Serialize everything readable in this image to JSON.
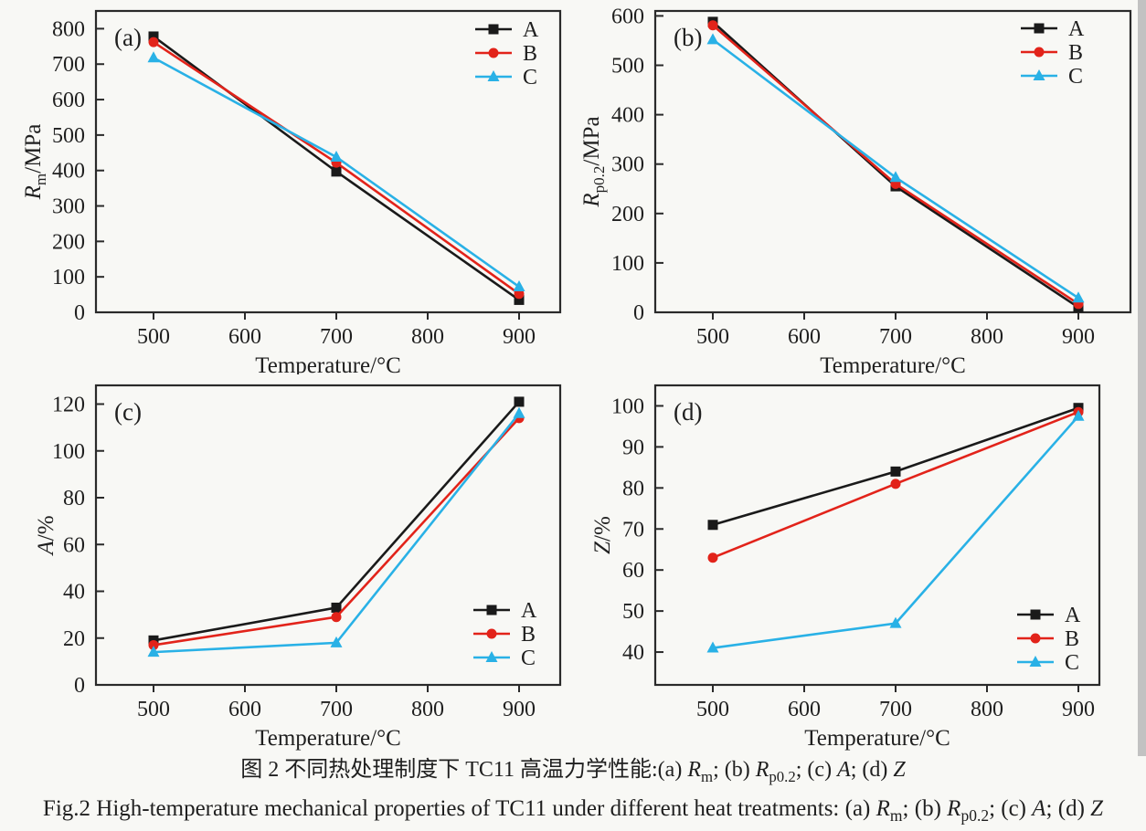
{
  "page": {
    "background": "#f8f8f5",
    "scan_strip_color": "#c2c2c2"
  },
  "colors": {
    "series_a": "#1a1a1a",
    "series_b": "#e2231a",
    "series_c": "#29b1e6",
    "text": "#1f1f1f",
    "axis": "#2a2a2a"
  },
  "caption": {
    "zh_segments": [
      {
        "t": "图 2 不同热处理制度下 TC11 高温力学性能:(a) "
      },
      {
        "t": "R",
        "i": true
      },
      {
        "t": "m",
        "sub": true
      },
      {
        "t": "; (b) "
      },
      {
        "t": "R",
        "i": true
      },
      {
        "t": "p0.2",
        "sub": true
      },
      {
        "t": "; (c) "
      },
      {
        "t": "A",
        "i": true
      },
      {
        "t": "; (d) "
      },
      {
        "t": "Z",
        "i": true
      }
    ],
    "en_segments": [
      {
        "t": "Fig.2  High-temperature mechanical properties of TC11 under different heat treatments: (a) "
      },
      {
        "t": "R",
        "i": true
      },
      {
        "t": "m",
        "sub": true
      },
      {
        "t": "; (b) "
      },
      {
        "t": "R",
        "i": true
      },
      {
        "t": "p0.2",
        "sub": true
      },
      {
        "t": "; (c) "
      },
      {
        "t": "A",
        "i": true
      },
      {
        "t": "; (d) "
      },
      {
        "t": "Z",
        "i": true
      }
    ]
  },
  "chart_data": [
    {
      "type": "line",
      "panel_label": "(a)",
      "xlabel": "Temperature/°C",
      "ylabel": "Rm/MPa",
      "ylabel_segments": [
        {
          "t": "R",
          "i": true
        },
        {
          "t": "m",
          "sub": true
        },
        {
          "t": "/MPa"
        }
      ],
      "x": [
        500,
        700,
        900
      ],
      "xticks": [
        500,
        600,
        700,
        800,
        900
      ],
      "xlim": [
        437,
        945
      ],
      "yticks": [
        0,
        100,
        200,
        300,
        400,
        500,
        600,
        700,
        800
      ],
      "ylim": [
        0,
        850
      ],
      "grid": false,
      "legend": {
        "position": "top-right",
        "entries": [
          "A",
          "B",
          "C"
        ]
      },
      "series": [
        {
          "name": "A",
          "color": "#1a1a1a",
          "marker": "square",
          "values": [
            778,
            397,
            35
          ]
        },
        {
          "name": "B",
          "color": "#e2231a",
          "marker": "circle",
          "values": [
            762,
            422,
            52
          ]
        },
        {
          "name": "C",
          "color": "#29b1e6",
          "marker": "triangle",
          "values": [
            718,
            438,
            72
          ]
        }
      ]
    },
    {
      "type": "line",
      "panel_label": "(b)",
      "xlabel": "Temperature/°C",
      "ylabel": "Rp0.2/MPa",
      "ylabel_segments": [
        {
          "t": "R",
          "i": true
        },
        {
          "t": "p0.2",
          "sub": true
        },
        {
          "t": "/MPa"
        }
      ],
      "x": [
        500,
        700,
        900
      ],
      "xticks": [
        500,
        600,
        700,
        800,
        900
      ],
      "xlim": [
        437,
        957
      ],
      "yticks": [
        0,
        100,
        200,
        300,
        400,
        500,
        600
      ],
      "ylim": [
        0,
        610
      ],
      "grid": false,
      "legend": {
        "position": "top-right",
        "entries": [
          "A",
          "B",
          "C"
        ]
      },
      "series": [
        {
          "name": "A",
          "color": "#1a1a1a",
          "marker": "square",
          "values": [
            588,
            255,
            10
          ]
        },
        {
          "name": "B",
          "color": "#e2231a",
          "marker": "circle",
          "values": [
            581,
            260,
            17
          ]
        },
        {
          "name": "C",
          "color": "#29b1e6",
          "marker": "triangle",
          "values": [
            552,
            273,
            29
          ]
        }
      ]
    },
    {
      "type": "line",
      "panel_label": "(c)",
      "xlabel": "Temperature/°C",
      "ylabel": "A/%",
      "ylabel_segments": [
        {
          "t": "A",
          "i": true
        },
        {
          "t": "/%"
        }
      ],
      "x": [
        500,
        700,
        900
      ],
      "xticks": [
        500,
        600,
        700,
        800,
        900
      ],
      "xlim": [
        437,
        945
      ],
      "yticks": [
        0,
        20,
        40,
        60,
        80,
        100,
        120
      ],
      "ylim": [
        0,
        128
      ],
      "grid": false,
      "legend": {
        "position": "bottom-right",
        "entries": [
          "A",
          "B",
          "C"
        ]
      },
      "series": [
        {
          "name": "A",
          "color": "#1a1a1a",
          "marker": "square",
          "values": [
            19,
            33,
            121
          ]
        },
        {
          "name": "B",
          "color": "#e2231a",
          "marker": "circle",
          "values": [
            17,
            29,
            114
          ]
        },
        {
          "name": "C",
          "color": "#29b1e6",
          "marker": "triangle",
          "values": [
            14,
            18,
            116
          ]
        }
      ]
    },
    {
      "type": "line",
      "panel_label": "(d)",
      "xlabel": "Temperature/°C",
      "ylabel": "Z/%",
      "ylabel_segments": [
        {
          "t": "Z",
          "i": true
        },
        {
          "t": "/%"
        }
      ],
      "x": [
        500,
        700,
        900
      ],
      "xticks": [
        500,
        600,
        700,
        800,
        900
      ],
      "xlim": [
        437,
        923
      ],
      "yticks": [
        40,
        50,
        60,
        70,
        80,
        90,
        100
      ],
      "ylim": [
        32,
        105
      ],
      "grid": false,
      "legend": {
        "position": "bottom-right",
        "entries": [
          "A",
          "B",
          "C"
        ]
      },
      "series": [
        {
          "name": "A",
          "color": "#1a1a1a",
          "marker": "square",
          "values": [
            71,
            84,
            99.5
          ]
        },
        {
          "name": "B",
          "color": "#e2231a",
          "marker": "circle",
          "values": [
            63,
            81,
            98.5
          ]
        },
        {
          "name": "C",
          "color": "#29b1e6",
          "marker": "triangle",
          "values": [
            41,
            47,
            97.5
          ]
        }
      ]
    }
  ]
}
